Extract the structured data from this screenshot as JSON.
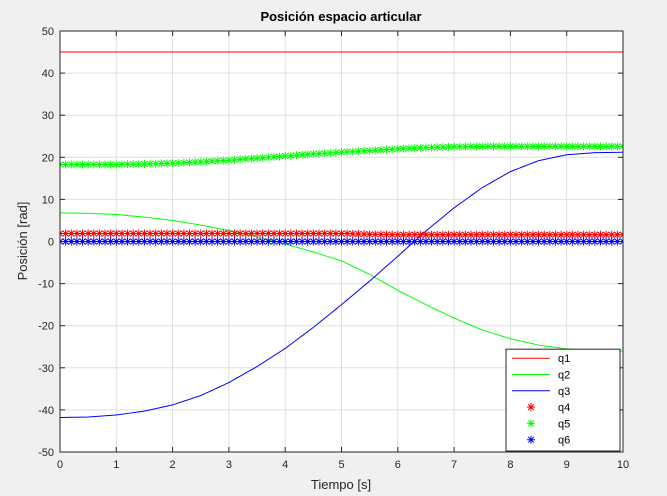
{
  "chart_data": {
    "type": "line",
    "title": "Posición espacio articular",
    "xlabel": "Tiempo [s]",
    "ylabel": "Posición [rad]",
    "xlim": [
      0,
      10
    ],
    "ylim": [
      -50,
      50
    ],
    "xticks": [
      0,
      1,
      2,
      3,
      4,
      5,
      6,
      7,
      8,
      9,
      10
    ],
    "yticks": [
      -50,
      -40,
      -30,
      -20,
      -10,
      0,
      10,
      20,
      30,
      40,
      50
    ],
    "grid": true,
    "legend_position": "bottom-right",
    "x": [
      0,
      0.5,
      1,
      1.5,
      2,
      2.5,
      3,
      3.5,
      4,
      4.5,
      5,
      5.5,
      6,
      6.5,
      7,
      7.5,
      8,
      8.5,
      9,
      9.5,
      10
    ],
    "series": [
      {
        "name": "q1",
        "style": "line",
        "color": "#ff0000",
        "values": [
          45,
          45,
          45,
          45,
          45,
          45,
          45,
          45,
          45,
          45,
          45,
          45,
          45,
          45,
          45,
          45,
          45,
          45,
          45,
          45,
          45
        ]
      },
      {
        "name": "q2",
        "style": "line",
        "color": "#00ff00",
        "values": [
          6.8,
          6.7,
          6.4,
          5.8,
          5.0,
          3.9,
          2.6,
          1.1,
          -0.6,
          -2.5,
          -4.6,
          -7.8,
          -11.6,
          -15.0,
          -18.2,
          -21.0,
          -23.1,
          -24.6,
          -25.5,
          -25.9,
          -26.0
        ]
      },
      {
        "name": "q3",
        "style": "line",
        "color": "#0000ff",
        "values": [
          -41.8,
          -41.7,
          -41.2,
          -40.3,
          -38.8,
          -36.6,
          -33.5,
          -29.7,
          -25.4,
          -20.4,
          -15.0,
          -9.4,
          -3.5,
          2.5,
          8.0,
          12.8,
          16.6,
          19.2,
          20.6,
          21.1,
          21.2
        ]
      },
      {
        "name": "q4",
        "style": "markers",
        "color": "#ff0000",
        "values": [
          1.9,
          1.9,
          1.9,
          1.9,
          1.9,
          1.9,
          1.9,
          1.9,
          1.9,
          1.9,
          1.9,
          1.7,
          1.6,
          1.6,
          1.6,
          1.6,
          1.6,
          1.6,
          1.6,
          1.6,
          1.6
        ]
      },
      {
        "name": "q5",
        "style": "markers",
        "color": "#00ff00",
        "values": [
          18.3,
          18.3,
          18.3,
          18.4,
          18.6,
          18.9,
          19.3,
          19.8,
          20.3,
          20.8,
          21.2,
          21.6,
          22.0,
          22.3,
          22.5,
          22.6,
          22.6,
          22.6,
          22.6,
          22.6,
          22.6
        ]
      },
      {
        "name": "q6",
        "style": "markers",
        "color": "#0000ff",
        "values": [
          0,
          0,
          0,
          0,
          0,
          0,
          0,
          0,
          0,
          0,
          0,
          0,
          0,
          0,
          0,
          0,
          0,
          0,
          0,
          0,
          0
        ]
      }
    ]
  }
}
